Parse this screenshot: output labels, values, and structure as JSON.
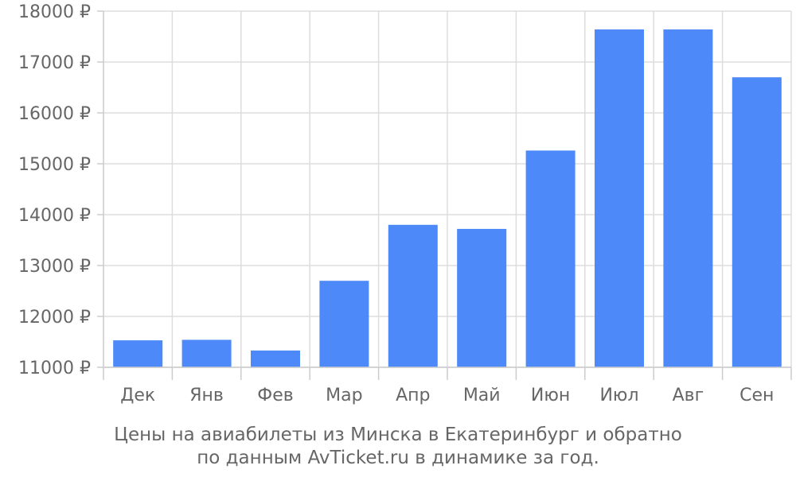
{
  "chart_data": {
    "type": "bar",
    "categories": [
      "Дек",
      "Янв",
      "Фев",
      "Мар",
      "Апр",
      "Май",
      "Июн",
      "Июл",
      "Авг",
      "Сен"
    ],
    "values": [
      11530,
      11540,
      11330,
      12700,
      13800,
      13720,
      15260,
      17640,
      17640,
      16700
    ],
    "ylim": [
      11000,
      18000
    ],
    "yticks": [
      11000,
      12000,
      13000,
      14000,
      15000,
      16000,
      17000,
      18000
    ],
    "ytick_suffix": " ₽",
    "grid": true,
    "bar_color": "#4d89f9"
  },
  "caption": {
    "line1": "Цены на авиабилеты из Минска в Екатеринбург и обратно",
    "line2": "по данным AvTicket.ru в динамике за год."
  }
}
